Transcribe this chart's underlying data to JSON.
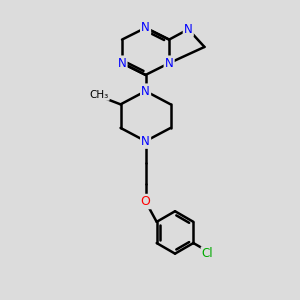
{
  "bg_color": "#dcdcdc",
  "bond_color": "#000000",
  "N_color": "#0000ff",
  "O_color": "#ff0000",
  "Cl_color": "#00aa00",
  "bond_width": 1.8,
  "figsize": [
    3.0,
    3.0
  ],
  "dpi": 100,
  "xlim": [
    0,
    10
  ],
  "ylim": [
    0,
    10
  ]
}
